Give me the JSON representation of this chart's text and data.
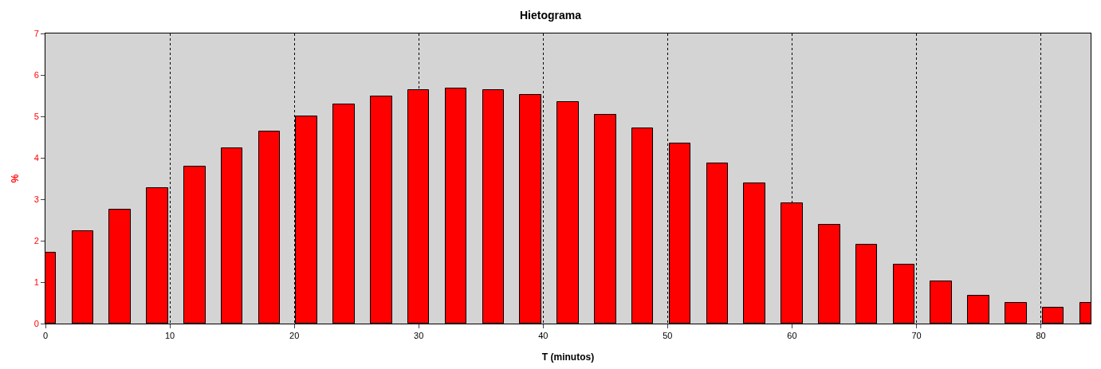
{
  "chart_data": {
    "type": "bar",
    "title": "Hietograma",
    "xlabel": "T (minutos)",
    "ylabel": "%",
    "x": [
      0,
      3,
      6,
      9,
      12,
      15,
      18,
      21,
      24,
      27,
      30,
      33,
      36,
      39,
      42,
      45,
      48,
      51,
      54,
      57,
      60,
      63,
      66,
      69,
      72,
      75,
      78,
      81,
      84
    ],
    "values": [
      1.71,
      2.23,
      2.75,
      3.27,
      3.79,
      4.23,
      4.63,
      5.0,
      5.29,
      5.48,
      5.63,
      5.67,
      5.63,
      5.52,
      5.35,
      5.04,
      4.71,
      4.35,
      3.87,
      3.38,
      2.9,
      2.38,
      1.9,
      1.42,
      1.02,
      0.67,
      0.5,
      0.38,
      0.5
    ],
    "color": "#ff0000",
    "xlim": [
      0,
      84
    ],
    "xticks": [
      0,
      10,
      20,
      30,
      40,
      50,
      60,
      70,
      80
    ],
    "ylim": [
      0,
      7
    ],
    "yticks": [
      0,
      1,
      2,
      3,
      4,
      5,
      6,
      7
    ],
    "grid": "x"
  }
}
